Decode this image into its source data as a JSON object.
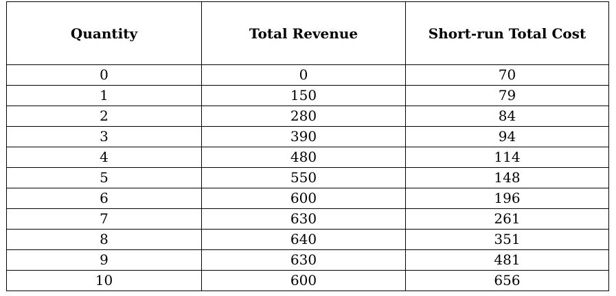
{
  "table": {
    "headers": [
      "Quantity",
      "Total Revenue",
      "Short-run Total Cost"
    ],
    "rows": [
      [
        "0",
        "0",
        "70"
      ],
      [
        "1",
        "150",
        "79"
      ],
      [
        "2",
        "280",
        "84"
      ],
      [
        "3",
        "390",
        "94"
      ],
      [
        "4",
        "480",
        "114"
      ],
      [
        "5",
        "550",
        "148"
      ],
      [
        "6",
        "600",
        "196"
      ],
      [
        "7",
        "630",
        "261"
      ],
      [
        "8",
        "640",
        "351"
      ],
      [
        "9",
        "630",
        "481"
      ],
      [
        "10",
        "600",
        "656"
      ]
    ]
  }
}
